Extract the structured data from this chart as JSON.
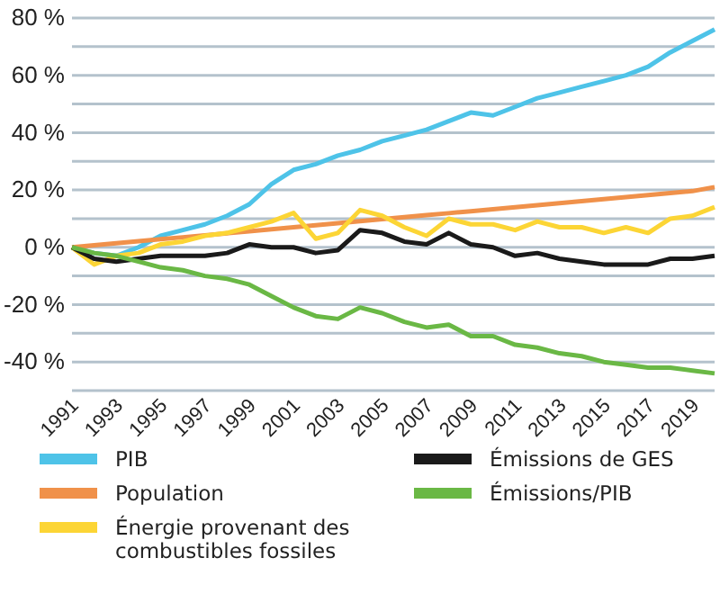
{
  "chart_data": {
    "type": "line",
    "x": [
      1991,
      1992,
      1993,
      1994,
      1995,
      1996,
      1997,
      1998,
      1999,
      2000,
      2001,
      2002,
      2003,
      2004,
      2005,
      2006,
      2007,
      2008,
      2009,
      2010,
      2011,
      2012,
      2013,
      2014,
      2015,
      2016,
      2017,
      2018,
      2019,
      2020
    ],
    "series": [
      {
        "name": "PIB",
        "color": "#4ec3e8",
        "values": [
          0,
          -2,
          -3,
          0,
          4,
          6,
          8,
          11,
          15,
          22,
          27,
          29,
          32,
          34,
          37,
          39,
          41,
          44,
          47,
          46,
          49,
          52,
          54,
          56,
          58,
          60,
          63,
          68,
          72,
          76
        ]
      },
      {
        "name": "Population",
        "color": "#f0914a",
        "values": [
          0,
          0.7,
          1.4,
          2.1,
          2.8,
          3.5,
          4.2,
          4.9,
          5.6,
          6.3,
          7,
          7.7,
          8.4,
          9.1,
          9.8,
          10.5,
          11.2,
          11.9,
          12.6,
          13.3,
          14,
          14.7,
          15.4,
          16.1,
          16.8,
          17.5,
          18.2,
          18.9,
          19.6,
          21
        ]
      },
      {
        "name": "Énergie provenant des combustibles fossiles",
        "color": "#fcd535",
        "values": [
          0,
          -6,
          -3,
          -2,
          1,
          2,
          4,
          5,
          7,
          9,
          12,
          3,
          5,
          13,
          11,
          7,
          4,
          10,
          8,
          8,
          6,
          9,
          7,
          7,
          5,
          7,
          5,
          10,
          11,
          14
        ]
      },
      {
        "name": "Émissions de GES",
        "color": "#1a1a1a",
        "values": [
          0,
          -4,
          -5,
          -4,
          -3,
          -3,
          -3,
          -2,
          1,
          0,
          0,
          -2,
          -1,
          6,
          5,
          2,
          1,
          5,
          1,
          0,
          -3,
          -2,
          -4,
          -5,
          -6,
          -6,
          -6,
          -4,
          -4,
          -3
        ]
      },
      {
        "name": "Émissions/PIB",
        "color": "#6ab845",
        "values": [
          0,
          -2,
          -3,
          -5,
          -7,
          -8,
          -10,
          -11,
          -13,
          -17,
          -21,
          -24,
          -25,
          -21,
          -23,
          -26,
          -28,
          -27,
          -31,
          -31,
          -34,
          -35,
          -37,
          -38,
          -40,
          -41,
          -42,
          -42,
          -43,
          -44
        ]
      }
    ],
    "xlim": [
      1991,
      2020
    ],
    "xticks": [
      1991,
      1993,
      1995,
      1997,
      1999,
      2001,
      2003,
      2005,
      2007,
      2009,
      2011,
      2013,
      2015,
      2017,
      2019
    ],
    "ylim": [
      -50,
      80
    ],
    "yticks": [
      {
        "value": -50,
        "label": null
      },
      {
        "value": -40,
        "label": "-40 %"
      },
      {
        "value": -30,
        "label": null
      },
      {
        "value": -20,
        "label": "-20 %"
      },
      {
        "value": -10,
        "label": null
      },
      {
        "value": 0,
        "label": "0 %"
      },
      {
        "value": 10,
        "label": null
      },
      {
        "value": 20,
        "label": "20 %"
      },
      {
        "value": 30,
        "label": null
      },
      {
        "value": 40,
        "label": "40 %"
      },
      {
        "value": 50,
        "label": null
      },
      {
        "value": 60,
        "label": "60 %"
      },
      {
        "value": 70,
        "label": null
      },
      {
        "value": 80,
        "label": "80 %"
      }
    ],
    "grid": "y",
    "legend": "bottom",
    "marker": "none",
    "line_style": "solid"
  }
}
